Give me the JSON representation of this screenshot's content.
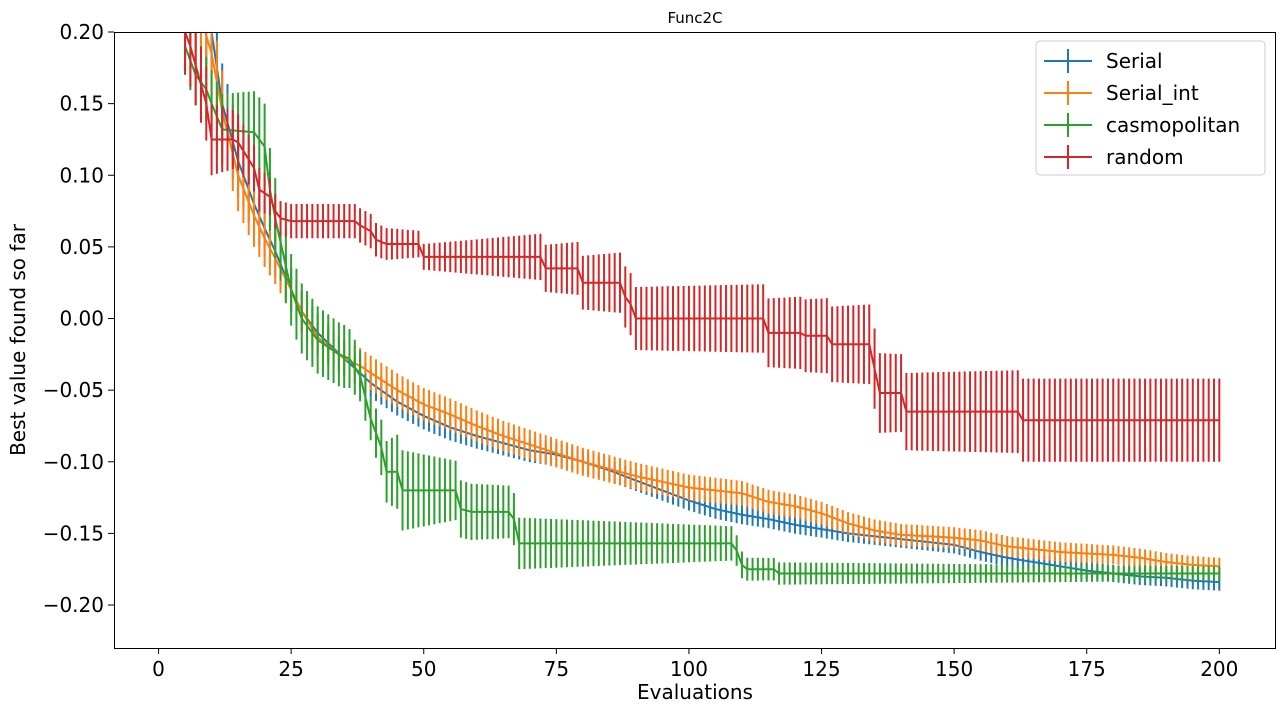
{
  "chart_data": {
    "type": "line",
    "title": "Func2C",
    "xlabel": "Evaluations",
    "ylabel": "Best value found so far",
    "xlim": [
      -18,
      418
    ],
    "ylim": [
      -0.23,
      0.2
    ],
    "xticks": [
      0,
      25,
      50,
      75,
      100,
      125,
      150,
      175,
      200
    ],
    "yticks": [
      -0.2,
      -0.15,
      -0.1,
      -0.05,
      0.0,
      0.05,
      0.1,
      0.15,
      0.2
    ],
    "xtick_labels": [
      "0",
      "25",
      "50",
      "75",
      "100",
      "125",
      "150",
      "175",
      "200"
    ],
    "ytick_labels": [
      "−0.20",
      "−0.15",
      "−0.10",
      "−0.05",
      "0.00",
      "0.05",
      "0.10",
      "0.15",
      "0.20"
    ],
    "grid": false,
    "legend_position": "top-right",
    "error_bars": true,
    "series": [
      {
        "name": "Serial",
        "color": "#1f77b4",
        "x_start": 5,
        "x_end": 200,
        "points": [
          [
            5,
            0.23
          ],
          [
            8,
            0.215
          ],
          [
            10,
            0.2
          ],
          [
            12,
            0.15
          ],
          [
            15,
            0.11
          ],
          [
            18,
            0.08
          ],
          [
            20,
            0.063
          ],
          [
            22,
            0.047
          ],
          [
            25,
            0.02
          ],
          [
            27,
            0.005
          ],
          [
            30,
            -0.01
          ],
          [
            35,
            -0.028
          ],
          [
            38,
            -0.038
          ],
          [
            40,
            -0.045
          ],
          [
            45,
            -0.058
          ],
          [
            50,
            -0.068
          ],
          [
            55,
            -0.076
          ],
          [
            60,
            -0.082
          ],
          [
            65,
            -0.087
          ],
          [
            70,
            -0.092
          ],
          [
            75,
            -0.095
          ],
          [
            80,
            -0.1
          ],
          [
            85,
            -0.106
          ],
          [
            90,
            -0.113
          ],
          [
            95,
            -0.12
          ],
          [
            100,
            -0.127
          ],
          [
            105,
            -0.133
          ],
          [
            110,
            -0.137
          ],
          [
            115,
            -0.14
          ],
          [
            120,
            -0.144
          ],
          [
            125,
            -0.147
          ],
          [
            130,
            -0.15
          ],
          [
            135,
            -0.152
          ],
          [
            140,
            -0.154
          ],
          [
            145,
            -0.156
          ],
          [
            150,
            -0.158
          ],
          [
            155,
            -0.163
          ],
          [
            160,
            -0.167
          ],
          [
            165,
            -0.17
          ],
          [
            170,
            -0.173
          ],
          [
            175,
            -0.176
          ],
          [
            180,
            -0.178
          ],
          [
            185,
            -0.18
          ],
          [
            190,
            -0.181
          ],
          [
            195,
            -0.183
          ],
          [
            200,
            -0.184
          ]
        ],
        "error": [
          [
            5,
            0.03
          ],
          [
            10,
            0.03
          ],
          [
            25,
            0.015
          ],
          [
            40,
            0.01
          ],
          [
            75,
            0.008
          ],
          [
            125,
            0.006
          ],
          [
            200,
            0.006
          ]
        ]
      },
      {
        "name": "Serial_int",
        "color": "#ff7f0e",
        "x_start": 5,
        "x_end": 200,
        "points": [
          [
            5,
            0.23
          ],
          [
            8,
            0.21
          ],
          [
            10,
            0.185
          ],
          [
            12,
            0.145
          ],
          [
            15,
            0.1
          ],
          [
            18,
            0.072
          ],
          [
            20,
            0.056
          ],
          [
            22,
            0.042
          ],
          [
            25,
            0.02
          ],
          [
            27,
            0.005
          ],
          [
            30,
            -0.013
          ],
          [
            33,
            -0.022
          ],
          [
            35,
            -0.028
          ],
          [
            38,
            -0.033
          ],
          [
            40,
            -0.038
          ],
          [
            45,
            -0.05
          ],
          [
            50,
            -0.06
          ],
          [
            55,
            -0.067
          ],
          [
            60,
            -0.075
          ],
          [
            65,
            -0.082
          ],
          [
            70,
            -0.088
          ],
          [
            75,
            -0.094
          ],
          [
            80,
            -0.1
          ],
          [
            85,
            -0.105
          ],
          [
            90,
            -0.11
          ],
          [
            95,
            -0.114
          ],
          [
            100,
            -0.118
          ],
          [
            105,
            -0.12
          ],
          [
            110,
            -0.122
          ],
          [
            115,
            -0.128
          ],
          [
            120,
            -0.131
          ],
          [
            125,
            -0.136
          ],
          [
            130,
            -0.143
          ],
          [
            135,
            -0.148
          ],
          [
            140,
            -0.151
          ],
          [
            145,
            -0.152
          ],
          [
            150,
            -0.153
          ],
          [
            155,
            -0.155
          ],
          [
            160,
            -0.159
          ],
          [
            165,
            -0.161
          ],
          [
            170,
            -0.163
          ],
          [
            175,
            -0.164
          ],
          [
            180,
            -0.165
          ],
          [
            185,
            -0.167
          ],
          [
            190,
            -0.17
          ],
          [
            195,
            -0.172
          ],
          [
            200,
            -0.173
          ]
        ],
        "error": [
          [
            5,
            0.03
          ],
          [
            10,
            0.03
          ],
          [
            25,
            0.015
          ],
          [
            40,
            0.012
          ],
          [
            75,
            0.01
          ],
          [
            125,
            0.008
          ],
          [
            200,
            0.006
          ]
        ]
      },
      {
        "name": "casmopolitan",
        "color": "#2ca02c",
        "x_start": 5,
        "x_end": 200,
        "points": [
          [
            5,
            0.19
          ],
          [
            7,
            0.17
          ],
          [
            9,
            0.16
          ],
          [
            10,
            0.15
          ],
          [
            12,
            0.132
          ],
          [
            18,
            0.13
          ],
          [
            20,
            0.12
          ],
          [
            21,
            0.09
          ],
          [
            22,
            0.07
          ],
          [
            25,
            0.02
          ],
          [
            27,
            0.0
          ],
          [
            30,
            -0.015
          ],
          [
            32,
            -0.02
          ],
          [
            34,
            -0.025
          ],
          [
            36,
            -0.028
          ],
          [
            38,
            -0.04
          ],
          [
            40,
            -0.07
          ],
          [
            41,
            -0.08
          ],
          [
            42,
            -0.09
          ],
          [
            43,
            -0.107
          ],
          [
            45,
            -0.107
          ],
          [
            46,
            -0.12
          ],
          [
            56,
            -0.12
          ],
          [
            57,
            -0.133
          ],
          [
            59,
            -0.135
          ],
          [
            66,
            -0.135
          ],
          [
            67,
            -0.14
          ],
          [
            68,
            -0.157
          ],
          [
            108,
            -0.157
          ],
          [
            109,
            -0.162
          ],
          [
            110,
            -0.172
          ],
          [
            111,
            -0.175
          ],
          [
            116,
            -0.175
          ],
          [
            117,
            -0.178
          ],
          [
            200,
            -0.178
          ]
        ],
        "error": [
          [
            5,
            0.02
          ],
          [
            20,
            0.03
          ],
          [
            25,
            0.025
          ],
          [
            35,
            0.022
          ],
          [
            40,
            0.015
          ],
          [
            46,
            0.028
          ],
          [
            57,
            0.02
          ],
          [
            68,
            0.018
          ],
          [
            108,
            0.012
          ],
          [
            111,
            0.008
          ],
          [
            200,
            0.005
          ]
        ]
      },
      {
        "name": "random",
        "color": "#d62728",
        "x_start": 4,
        "x_end": 200,
        "points": [
          [
            4,
            0.23
          ],
          [
            5,
            0.2
          ],
          [
            6,
            0.19
          ],
          [
            9,
            0.15
          ],
          [
            10,
            0.125
          ],
          [
            14,
            0.125
          ],
          [
            15,
            0.123
          ],
          [
            18,
            0.105
          ],
          [
            19,
            0.09
          ],
          [
            21,
            0.085
          ],
          [
            22,
            0.075
          ],
          [
            23,
            0.07
          ],
          [
            25,
            0.068
          ],
          [
            37,
            0.068
          ],
          [
            38,
            0.065
          ],
          [
            40,
            0.061
          ],
          [
            41,
            0.055
          ],
          [
            43,
            0.052
          ],
          [
            49,
            0.052
          ],
          [
            50,
            0.043
          ],
          [
            72,
            0.043
          ],
          [
            73,
            0.035
          ],
          [
            79,
            0.035
          ],
          [
            80,
            0.025
          ],
          [
            87,
            0.025
          ],
          [
            88,
            0.015
          ],
          [
            89,
            0.01
          ],
          [
            90,
            0.0
          ],
          [
            114,
            0.0
          ],
          [
            115,
            -0.01
          ],
          [
            121,
            -0.01
          ],
          [
            122,
            -0.012
          ],
          [
            126,
            -0.012
          ],
          [
            127,
            -0.018
          ],
          [
            134,
            -0.018
          ],
          [
            135,
            -0.035
          ],
          [
            136,
            -0.052
          ],
          [
            140,
            -0.052
          ],
          [
            141,
            -0.065
          ],
          [
            162,
            -0.065
          ],
          [
            163,
            -0.071
          ],
          [
            200,
            -0.071
          ]
        ],
        "error": [
          [
            4,
            0.03
          ],
          [
            10,
            0.025
          ],
          [
            22,
            0.012
          ],
          [
            40,
            0.012
          ],
          [
            50,
            0.009
          ],
          [
            90,
            0.022
          ],
          [
            115,
            0.024
          ],
          [
            135,
            0.028
          ],
          [
            141,
            0.027
          ],
          [
            163,
            0.029
          ],
          [
            200,
            0.029
          ]
        ]
      }
    ]
  }
}
